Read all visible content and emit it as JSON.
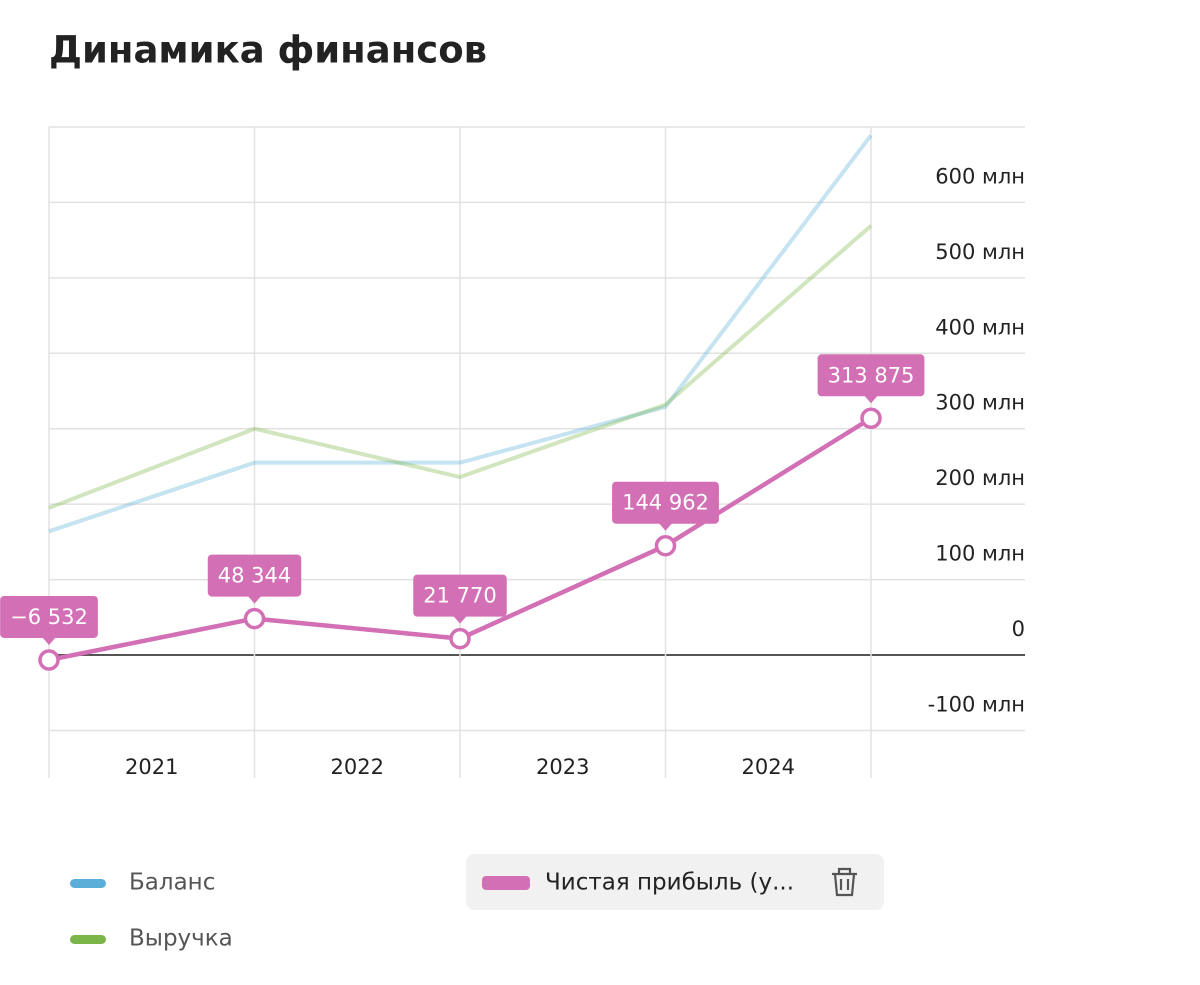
{
  "chart_data": {
    "type": "line",
    "title": "Динамика финансов",
    "categories": [
      null,
      null,
      null,
      null,
      null
    ],
    "periods": [
      "2021",
      "2022",
      "2023",
      "2024"
    ],
    "ylim": [
      -163,
      700
    ],
    "yticks": [
      {
        "value": -100,
        "label": "-100 млн"
      },
      0,
      {
        "value": 100,
        "label": "100 млн"
      },
      {
        "value": 200,
        "label": "200 млн"
      },
      {
        "value": 300,
        "label": "300 млн"
      },
      {
        "value": 400,
        "label": "400 млн"
      },
      {
        "value": 500,
        "label": "500 млн"
      },
      {
        "value": 600,
        "label": "600 млн"
      }
    ],
    "grid": true,
    "series": [
      {
        "name": "Баланс",
        "color": "#5aaed8",
        "values": [
          164,
          255,
          255,
          329,
          689
        ]
      },
      {
        "name": "Выручка",
        "color": "#7ab648",
        "values": [
          195,
          300,
          236,
          332,
          569
        ]
      },
      {
        "name": "Чистая прибыль (у...",
        "color": "#d36fb4",
        "values": [
          -6.532,
          48.344,
          21.77,
          144.962,
          313.875
        ],
        "value_labels": [
          "−6 532",
          "48 344",
          "21 770",
          "144 962",
          "313 875"
        ]
      }
    ]
  }
}
